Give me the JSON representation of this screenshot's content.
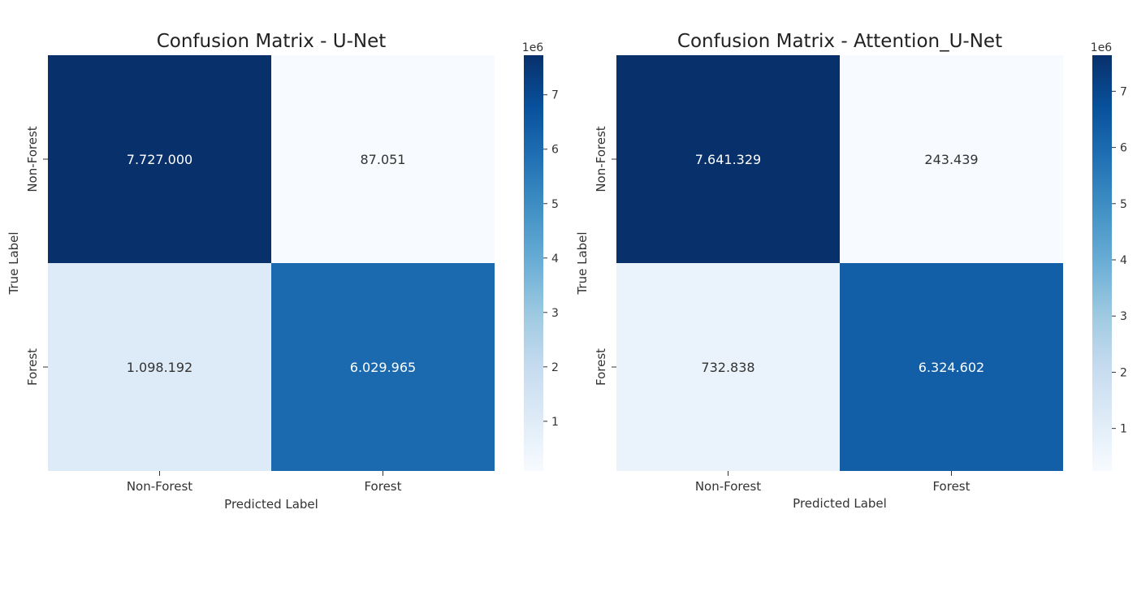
{
  "chart_data": [
    {
      "type": "heatmap",
      "title": "Confusion Matrix - U-Net",
      "xlabel": "Predicted Label",
      "ylabel": "True Label",
      "x_categories": [
        "Non-Forest",
        "Forest"
      ],
      "y_categories": [
        "Non-Forest",
        "Forest"
      ],
      "values": [
        [
          7727000,
          87051
        ],
        [
          1098192,
          6029965
        ]
      ],
      "labels": [
        [
          "7.727.000",
          "87.051"
        ],
        [
          "1.098.192",
          "6.029.965"
        ]
      ],
      "colorbar": {
        "ticks": [
          1,
          2,
          3,
          4,
          5,
          6,
          7
        ],
        "tick_labels": [
          "1",
          "2",
          "3",
          "4",
          "5",
          "6",
          "7"
        ],
        "multiplier": "1e6",
        "range": [
          87051,
          7727000
        ]
      },
      "colormap": "Blues"
    },
    {
      "type": "heatmap",
      "title": "Confusion Matrix - Attention_U-Net",
      "xlabel": "Predicted Label",
      "ylabel": "True Label",
      "x_categories": [
        "Non-Forest",
        "Forest"
      ],
      "y_categories": [
        "Non-Forest",
        "Forest"
      ],
      "values": [
        [
          7641329,
          243439
        ],
        [
          732838,
          6324602
        ]
      ],
      "labels": [
        [
          "7.641.329",
          "243.439"
        ],
        [
          "732.838",
          "6.324.602"
        ]
      ],
      "colorbar": {
        "ticks": [
          1,
          2,
          3,
          4,
          5,
          6,
          7
        ],
        "tick_labels": [
          "1",
          "2",
          "3",
          "4",
          "5",
          "6",
          "7"
        ],
        "multiplier": "1e6",
        "range": [
          243439,
          7641329
        ]
      },
      "colormap": "Blues"
    }
  ]
}
